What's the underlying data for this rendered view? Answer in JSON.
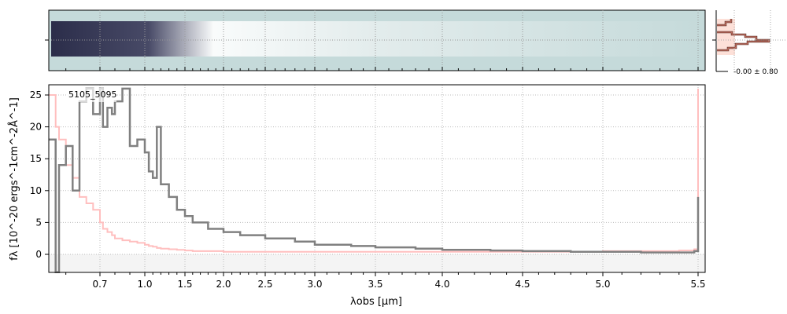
{
  "chart_data": {
    "type": "line",
    "title": "",
    "label": "5105_5095",
    "xlabel": "λobs [μm]",
    "ylabel": "fλ [10^-20 ergs^-1cm^-2Å^-1]",
    "xlim": [
      0.55,
      5.52
    ],
    "ylim": [
      -2.8,
      26.5
    ],
    "xticks": [
      0.7,
      1.0,
      1.5,
      2.0,
      2.5,
      3.0,
      3.5,
      4.0,
      4.5,
      5.0,
      5.5
    ],
    "xtick_labels": [
      "0.7",
      "1.0",
      "1.5",
      "2.0",
      "2.5",
      "3.0",
      "3.5",
      "4.0",
      "4.5",
      "5.0",
      "5.5"
    ],
    "yticks": [
      0,
      5,
      10,
      15,
      20,
      25
    ],
    "ytick_labels": [
      "0",
      "5",
      "10",
      "15",
      "20",
      "25"
    ],
    "grid": true,
    "x": [
      0.55,
      0.57,
      0.58,
      0.6,
      0.62,
      0.64,
      0.66,
      0.68,
      0.7,
      0.72,
      0.75,
      0.78,
      0.8,
      0.85,
      0.9,
      0.95,
      1.0,
      1.05,
      1.1,
      1.15,
      1.2,
      1.3,
      1.4,
      1.5,
      1.6,
      1.8,
      2.0,
      2.2,
      2.5,
      2.8,
      3.0,
      3.3,
      3.5,
      3.8,
      4.0,
      4.3,
      4.5,
      4.8,
      5.0,
      5.2,
      5.4,
      5.48,
      5.5
    ],
    "series": [
      {
        "name": "data",
        "color": "#808080",
        "values": [
          18,
          -3,
          14,
          17,
          10,
          24,
          26,
          22,
          26,
          20,
          23,
          22,
          24,
          26,
          17,
          18,
          16,
          13,
          12,
          20,
          11,
          9,
          7,
          6,
          5,
          4,
          3.5,
          3,
          2.5,
          2,
          1.5,
          1.3,
          1.1,
          0.9,
          0.7,
          0.6,
          0.5,
          0.4,
          0.4,
          0.3,
          0.3,
          0.5,
          9
        ]
      },
      {
        "name": "model",
        "color": "#ffbfbf",
        "values": [
          25,
          20,
          18,
          14,
          12,
          9,
          8,
          7,
          5,
          4,
          3.5,
          3,
          2.5,
          2.2,
          2,
          1.8,
          1.5,
          1.3,
          1.2,
          1.0,
          0.9,
          0.8,
          0.7,
          0.6,
          0.5,
          0.5,
          0.4,
          0.4,
          0.4,
          0.4,
          0.4,
          0.4,
          0.4,
          0.4,
          0.4,
          0.4,
          0.4,
          0.4,
          0.5,
          0.5,
          0.6,
          0.8,
          26
        ]
      }
    ],
    "histogram": {
      "label": "-0.00 ± 0.80",
      "values": [
        0.3,
        0.35,
        0.4,
        1.0,
        2.2,
        3.0,
        0.5,
        0.3
      ]
    }
  }
}
